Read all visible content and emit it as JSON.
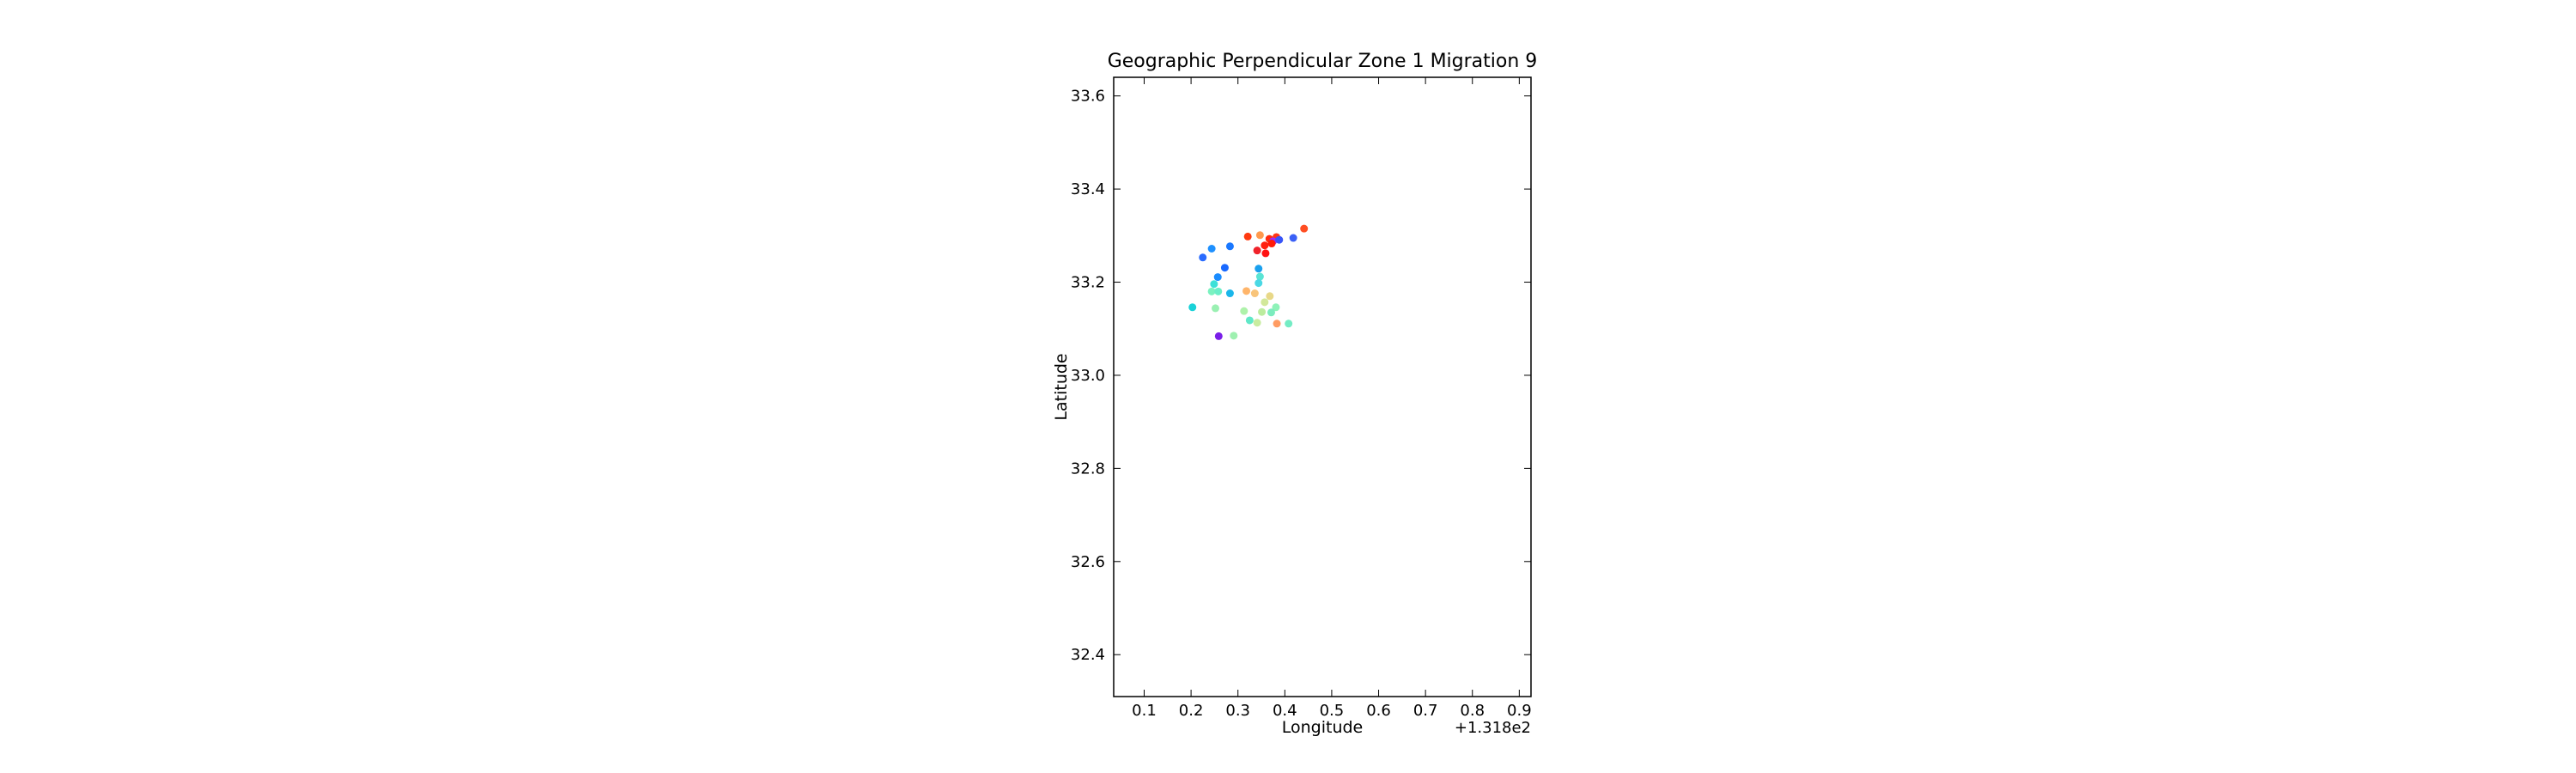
{
  "chart_data": {
    "type": "scatter",
    "title": "Geographic Perpendicular Zone 1 Migration 9",
    "xlabel": "Longitude",
    "ylabel": "Latitude",
    "x_offset_label": "+1.318e2",
    "xlim": [
      0.035,
      0.925
    ],
    "ylim": [
      32.31,
      33.64
    ],
    "x_ticks": [
      0.1,
      0.2,
      0.3,
      0.4,
      0.5,
      0.6,
      0.7,
      0.8,
      0.9
    ],
    "x_tick_labels": [
      "0.1",
      "0.2",
      "0.3",
      "0.4",
      "0.5",
      "0.6",
      "0.7",
      "0.8",
      "0.9"
    ],
    "y_ticks": [
      32.4,
      32.6,
      32.8,
      33.0,
      33.2,
      33.4,
      33.6
    ],
    "y_tick_labels": [
      "32.4",
      "32.6",
      "32.8",
      "33.0",
      "33.2",
      "33.4",
      "33.6"
    ],
    "grid": false,
    "colormap": "rainbow",
    "points": [
      {
        "x": 0.441,
        "y": 33.315,
        "color": "#ff4d22"
      },
      {
        "x": 0.321,
        "y": 33.298,
        "color": "#ff3a10"
      },
      {
        "x": 0.347,
        "y": 33.301,
        "color": "#ff9a4e"
      },
      {
        "x": 0.367,
        "y": 33.293,
        "color": "#ff2a10"
      },
      {
        "x": 0.382,
        "y": 33.297,
        "color": "#ff3516"
      },
      {
        "x": 0.375,
        "y": 33.288,
        "color": "#9a2bff"
      },
      {
        "x": 0.388,
        "y": 33.291,
        "color": "#3855f8"
      },
      {
        "x": 0.372,
        "y": 33.283,
        "color": "#ff1a08"
      },
      {
        "x": 0.357,
        "y": 33.279,
        "color": "#ff2010"
      },
      {
        "x": 0.341,
        "y": 33.268,
        "color": "#f0222a"
      },
      {
        "x": 0.359,
        "y": 33.262,
        "color": "#ff1212"
      },
      {
        "x": 0.418,
        "y": 33.295,
        "color": "#3a60f6"
      },
      {
        "x": 0.244,
        "y": 33.272,
        "color": "#1e90ff"
      },
      {
        "x": 0.283,
        "y": 33.277,
        "color": "#1a78ff"
      },
      {
        "x": 0.225,
        "y": 33.253,
        "color": "#2a6cff"
      },
      {
        "x": 0.272,
        "y": 33.231,
        "color": "#1a6aff"
      },
      {
        "x": 0.344,
        "y": 33.229,
        "color": "#1aa0ee"
      },
      {
        "x": 0.257,
        "y": 33.211,
        "color": "#1a8cff"
      },
      {
        "x": 0.347,
        "y": 33.212,
        "color": "#5ae4d4"
      },
      {
        "x": 0.344,
        "y": 33.198,
        "color": "#4ad8e4"
      },
      {
        "x": 0.249,
        "y": 33.196,
        "color": "#3ce0d8"
      },
      {
        "x": 0.283,
        "y": 33.176,
        "color": "#1ab6ea"
      },
      {
        "x": 0.244,
        "y": 33.18,
        "color": "#7af2c0"
      },
      {
        "x": 0.258,
        "y": 33.18,
        "color": "#6aeec8"
      },
      {
        "x": 0.318,
        "y": 33.181,
        "color": "#ffb56a"
      },
      {
        "x": 0.336,
        "y": 33.176,
        "color": "#f8c47a"
      },
      {
        "x": 0.357,
        "y": 33.157,
        "color": "#d2e89a"
      },
      {
        "x": 0.368,
        "y": 33.17,
        "color": "#e8d888"
      },
      {
        "x": 0.203,
        "y": 33.146,
        "color": "#1ad2d8"
      },
      {
        "x": 0.252,
        "y": 33.144,
        "color": "#9af0b2"
      },
      {
        "x": 0.313,
        "y": 33.138,
        "color": "#aef2aa"
      },
      {
        "x": 0.351,
        "y": 33.136,
        "color": "#bcec9e"
      },
      {
        "x": 0.381,
        "y": 33.146,
        "color": "#8ef2b8"
      },
      {
        "x": 0.371,
        "y": 33.135,
        "color": "#7cecbe"
      },
      {
        "x": 0.325,
        "y": 33.118,
        "color": "#60e8c8"
      },
      {
        "x": 0.341,
        "y": 33.113,
        "color": "#c8eca0"
      },
      {
        "x": 0.383,
        "y": 33.111,
        "color": "#ff9c62"
      },
      {
        "x": 0.408,
        "y": 33.111,
        "color": "#74ecc4"
      },
      {
        "x": 0.259,
        "y": 33.084,
        "color": "#7a1ee8"
      },
      {
        "x": 0.291,
        "y": 33.085,
        "color": "#9ef0b0"
      }
    ]
  }
}
